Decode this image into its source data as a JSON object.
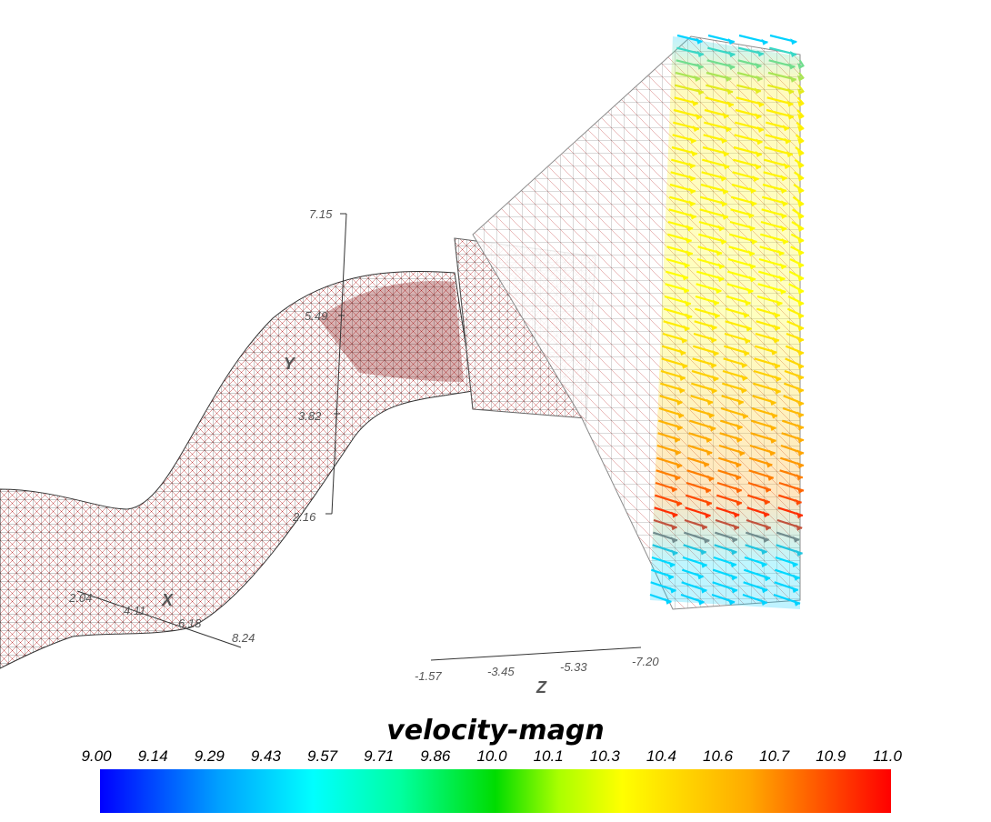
{
  "scene": {
    "y_axis": {
      "title": "Y",
      "ticks": [
        "7.15",
        "5.49",
        "3.82",
        "2.16"
      ]
    },
    "x_axis": {
      "title": "X",
      "ticks": [
        "2.04",
        "4.11",
        "6.18",
        "8.24"
      ]
    },
    "z_axis": {
      "title": "Z",
      "ticks": [
        "-1.57",
        "-3.45",
        "-5.33",
        "-7.20"
      ]
    }
  },
  "legend": {
    "title": "velocity-magn",
    "ticks": [
      "9.00",
      "9.14",
      "9.29",
      "9.43",
      "9.57",
      "9.71",
      "9.86",
      "10.0",
      "10.1",
      "10.3",
      "10.4",
      "10.6",
      "10.7",
      "10.9",
      "11.0"
    ],
    "colors": [
      "#0000ff",
      "#00ffff",
      "#00dc00",
      "#ffff00",
      "#ff0000"
    ]
  }
}
